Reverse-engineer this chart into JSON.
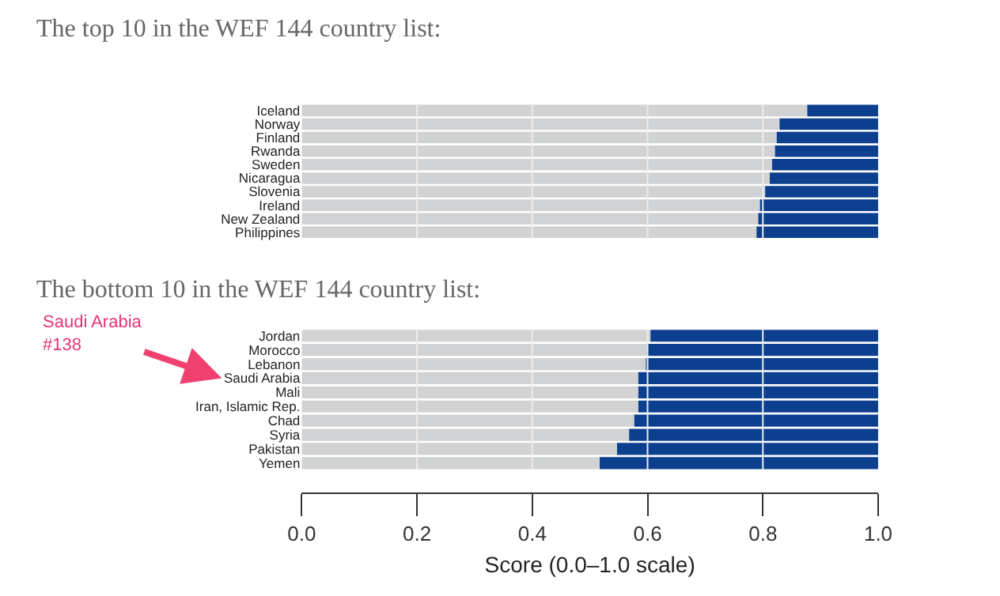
{
  "chart_data": [
    {
      "type": "bar",
      "orientation": "horizontal",
      "stacked": true,
      "title": "The top 10 in the WEF 144 country list:",
      "categories": [
        "Iceland",
        "Norway",
        "Finland",
        "Rwanda",
        "Sweden",
        "Nicaragua",
        "Slovenia",
        "Ireland",
        "New Zealand",
        "Philippines"
      ],
      "series": [
        {
          "color": "#d1d2d4",
          "values": [
            0.877,
            0.829,
            0.824,
            0.821,
            0.816,
            0.812,
            0.804,
            0.795,
            0.792,
            0.789
          ]
        },
        {
          "color": "#0d3f8f",
          "values": [
            0.123,
            0.171,
            0.176,
            0.179,
            0.184,
            0.188,
            0.196,
            0.205,
            0.208,
            0.211
          ]
        }
      ],
      "xlim": [
        0,
        1
      ],
      "xticks": [
        0.2,
        0.4,
        0.6,
        0.8
      ],
      "grid": "x",
      "tick_labels": "y"
    },
    {
      "type": "bar",
      "orientation": "horizontal",
      "stacked": true,
      "title": "The bottom 10 in the WEF 144 country list:",
      "xlabel": "Score (0.0–1.0 scale)",
      "annotations": [
        "Saudi Arabia\n#138"
      ],
      "categories": [
        "Jordan",
        "Morocco",
        "Lebanon",
        "Saudi Arabia",
        "Mali",
        "Iran, Islamic Rep.",
        "Chad",
        "Syria",
        "Pakistan",
        "Yemen"
      ],
      "series": [
        {
          "color": "#d1d2d4",
          "values": [
            0.605,
            0.599,
            0.597,
            0.584,
            0.584,
            0.584,
            0.577,
            0.568,
            0.547,
            0.517
          ]
        },
        {
          "color": "#0d3f8f",
          "values": [
            0.395,
            0.401,
            0.403,
            0.416,
            0.416,
            0.416,
            0.423,
            0.432,
            0.453,
            0.483
          ]
        }
      ],
      "xlim": [
        0,
        1
      ],
      "xticks": [
        {
          "value": 0,
          "label": "0.0"
        },
        0.2,
        0.4,
        0.6,
        0.8,
        {
          "value": 1,
          "label": "1.0"
        }
      ],
      "grid": "x"
    }
  ]
}
